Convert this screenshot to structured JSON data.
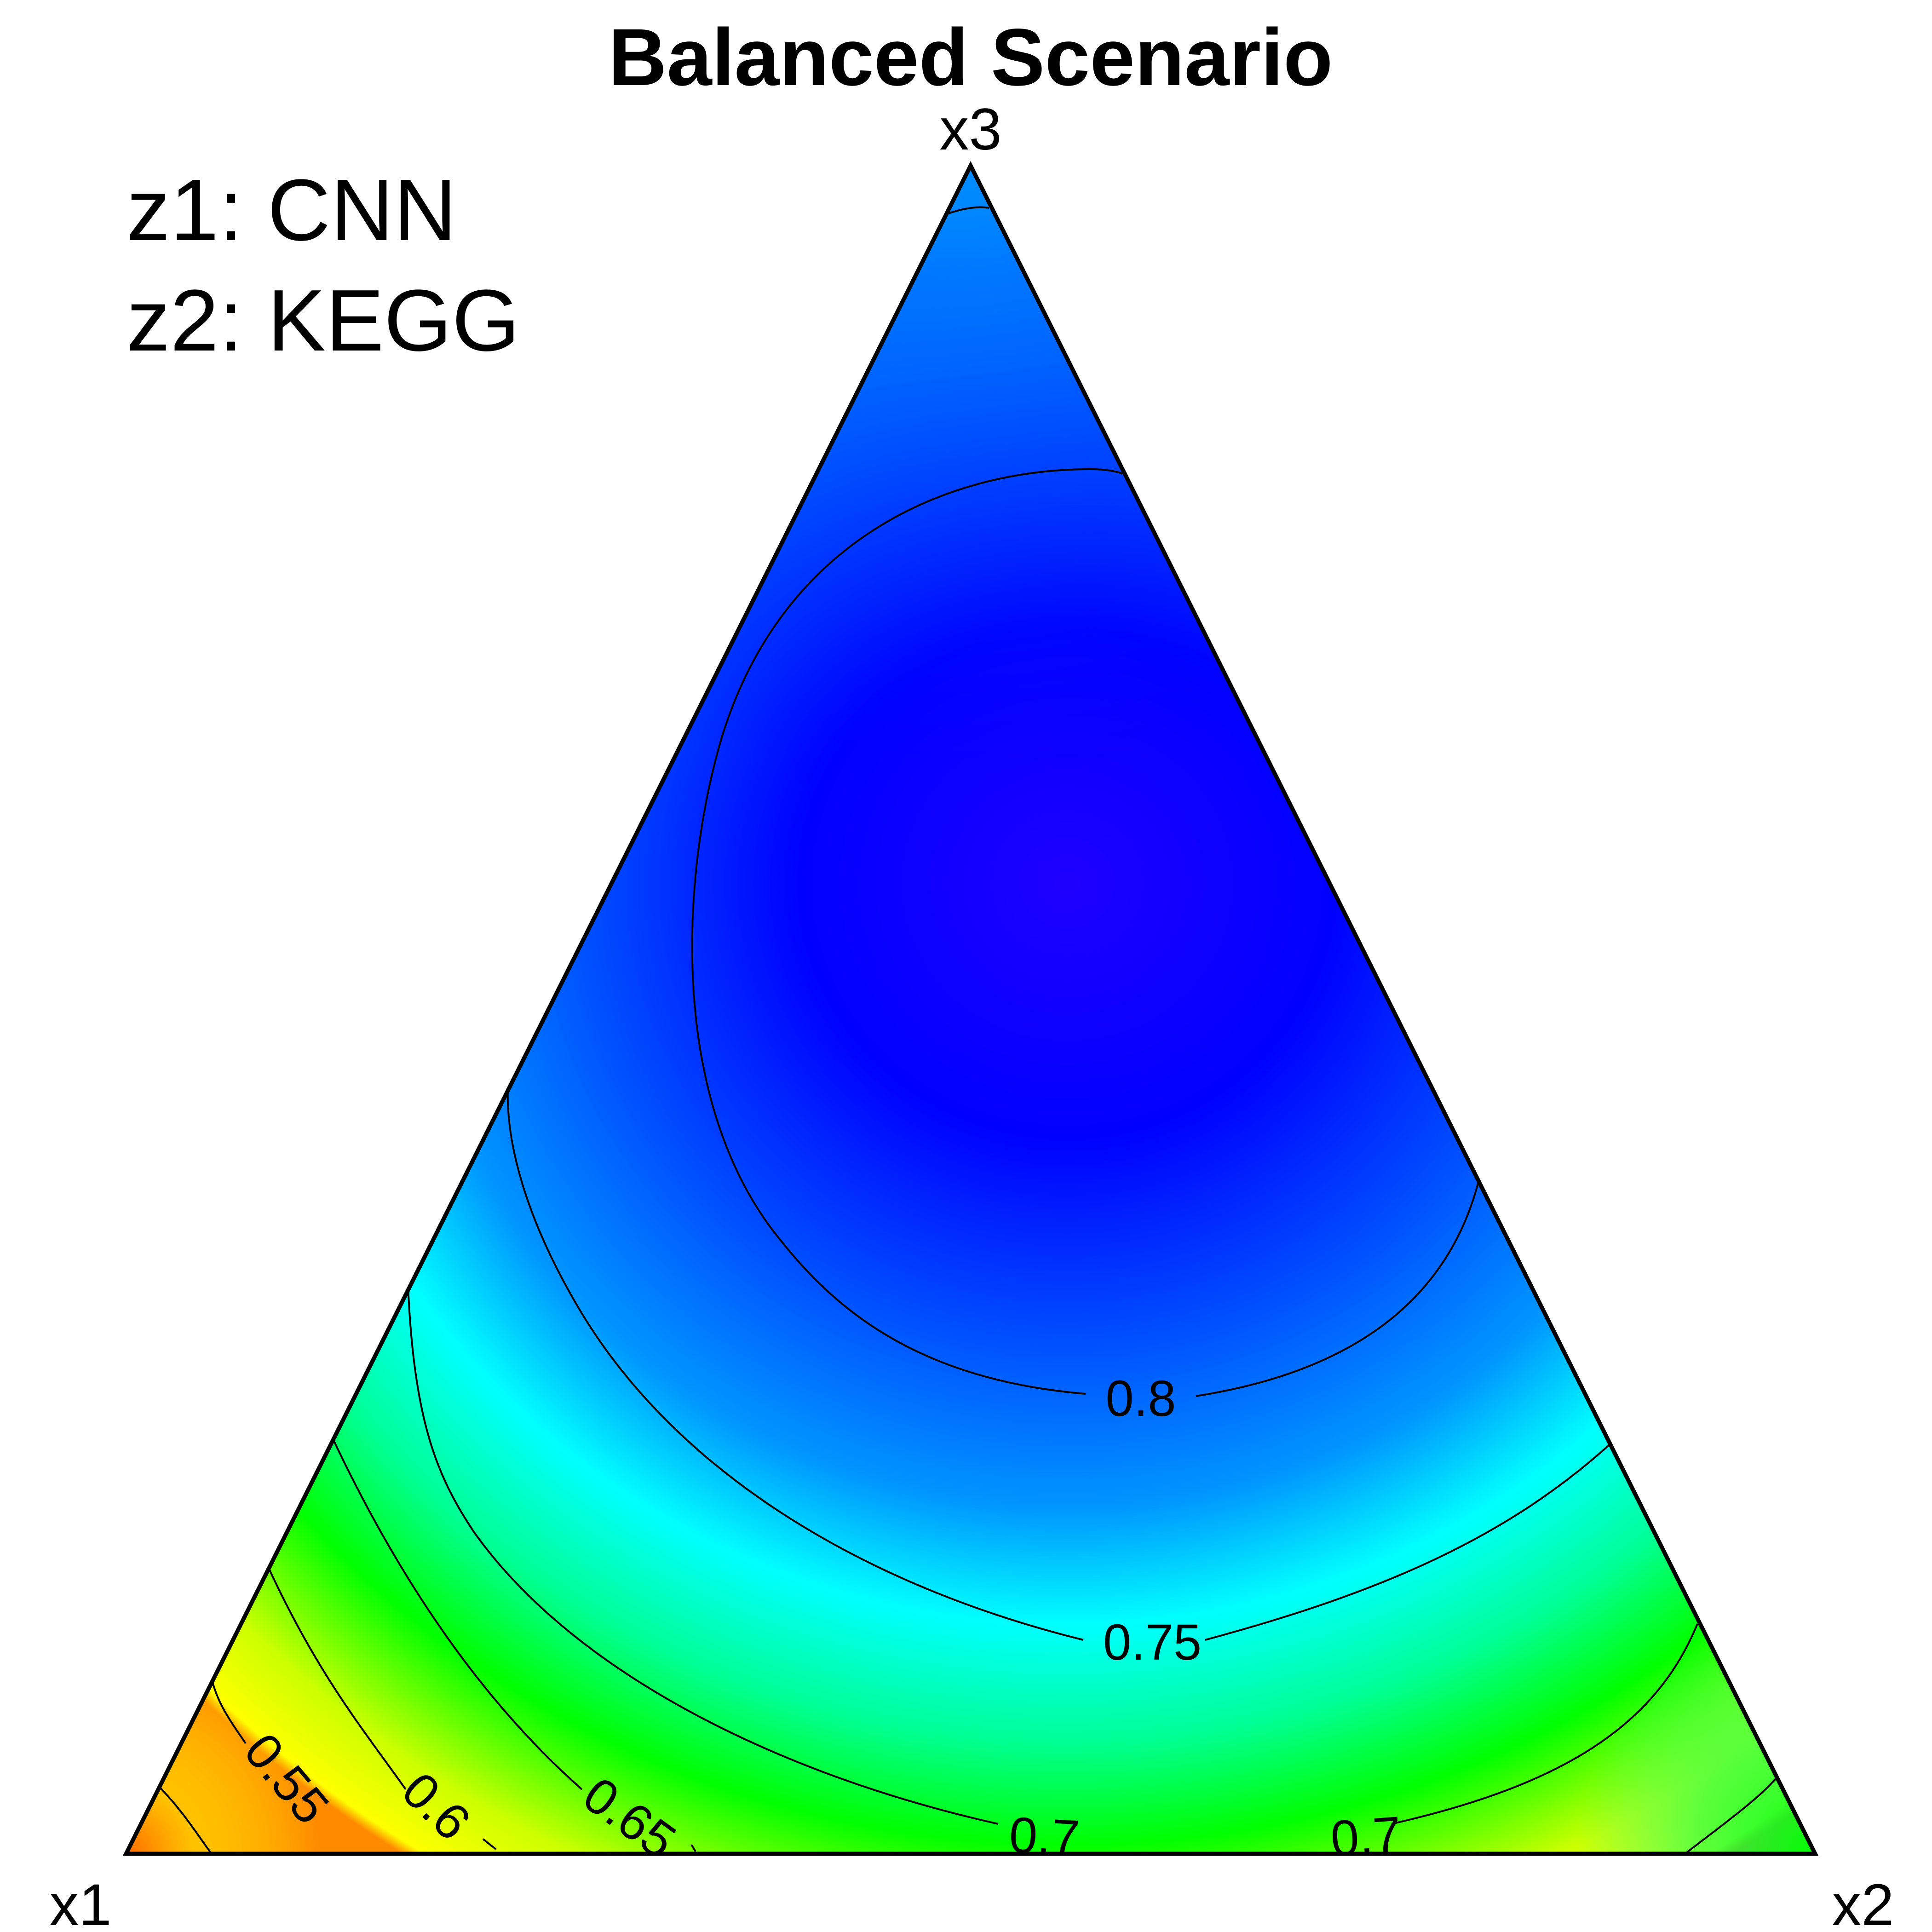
{
  "chart_data": {
    "type": "heatmap",
    "subtype": "ternary-contour",
    "title": "Balanced Scenario",
    "annotations": [
      "z1: CNN",
      "z2: KEGG"
    ],
    "vertex_labels": {
      "bottom_left": "x1",
      "bottom_right": "x2",
      "top": "x3"
    },
    "colormap": [
      "#ff6a00",
      "#ffff00",
      "#00ff00",
      "#00ffff",
      "#0066ff",
      "#0000ff",
      "#2a00ff"
    ],
    "value_range": [
      0.5,
      0.83
    ],
    "peak": {
      "x1": 0.18,
      "x2": 0.32,
      "x3": 0.5,
      "value": 0.83
    },
    "contour_levels": [
      0.55,
      0.6,
      0.65,
      0.7,
      0.75,
      0.8
    ],
    "contour_labels": [
      {
        "text": "0.55",
        "level": 0.55
      },
      {
        "text": "0.6",
        "level": 0.6
      },
      {
        "text": "0.65",
        "level": 0.65
      },
      {
        "text": "0.7",
        "level": 0.7
      },
      {
        "text": "0.7",
        "level": 0.7
      },
      {
        "text": "0.75",
        "level": 0.75
      },
      {
        "text": "0.8",
        "level": 0.8
      }
    ]
  }
}
